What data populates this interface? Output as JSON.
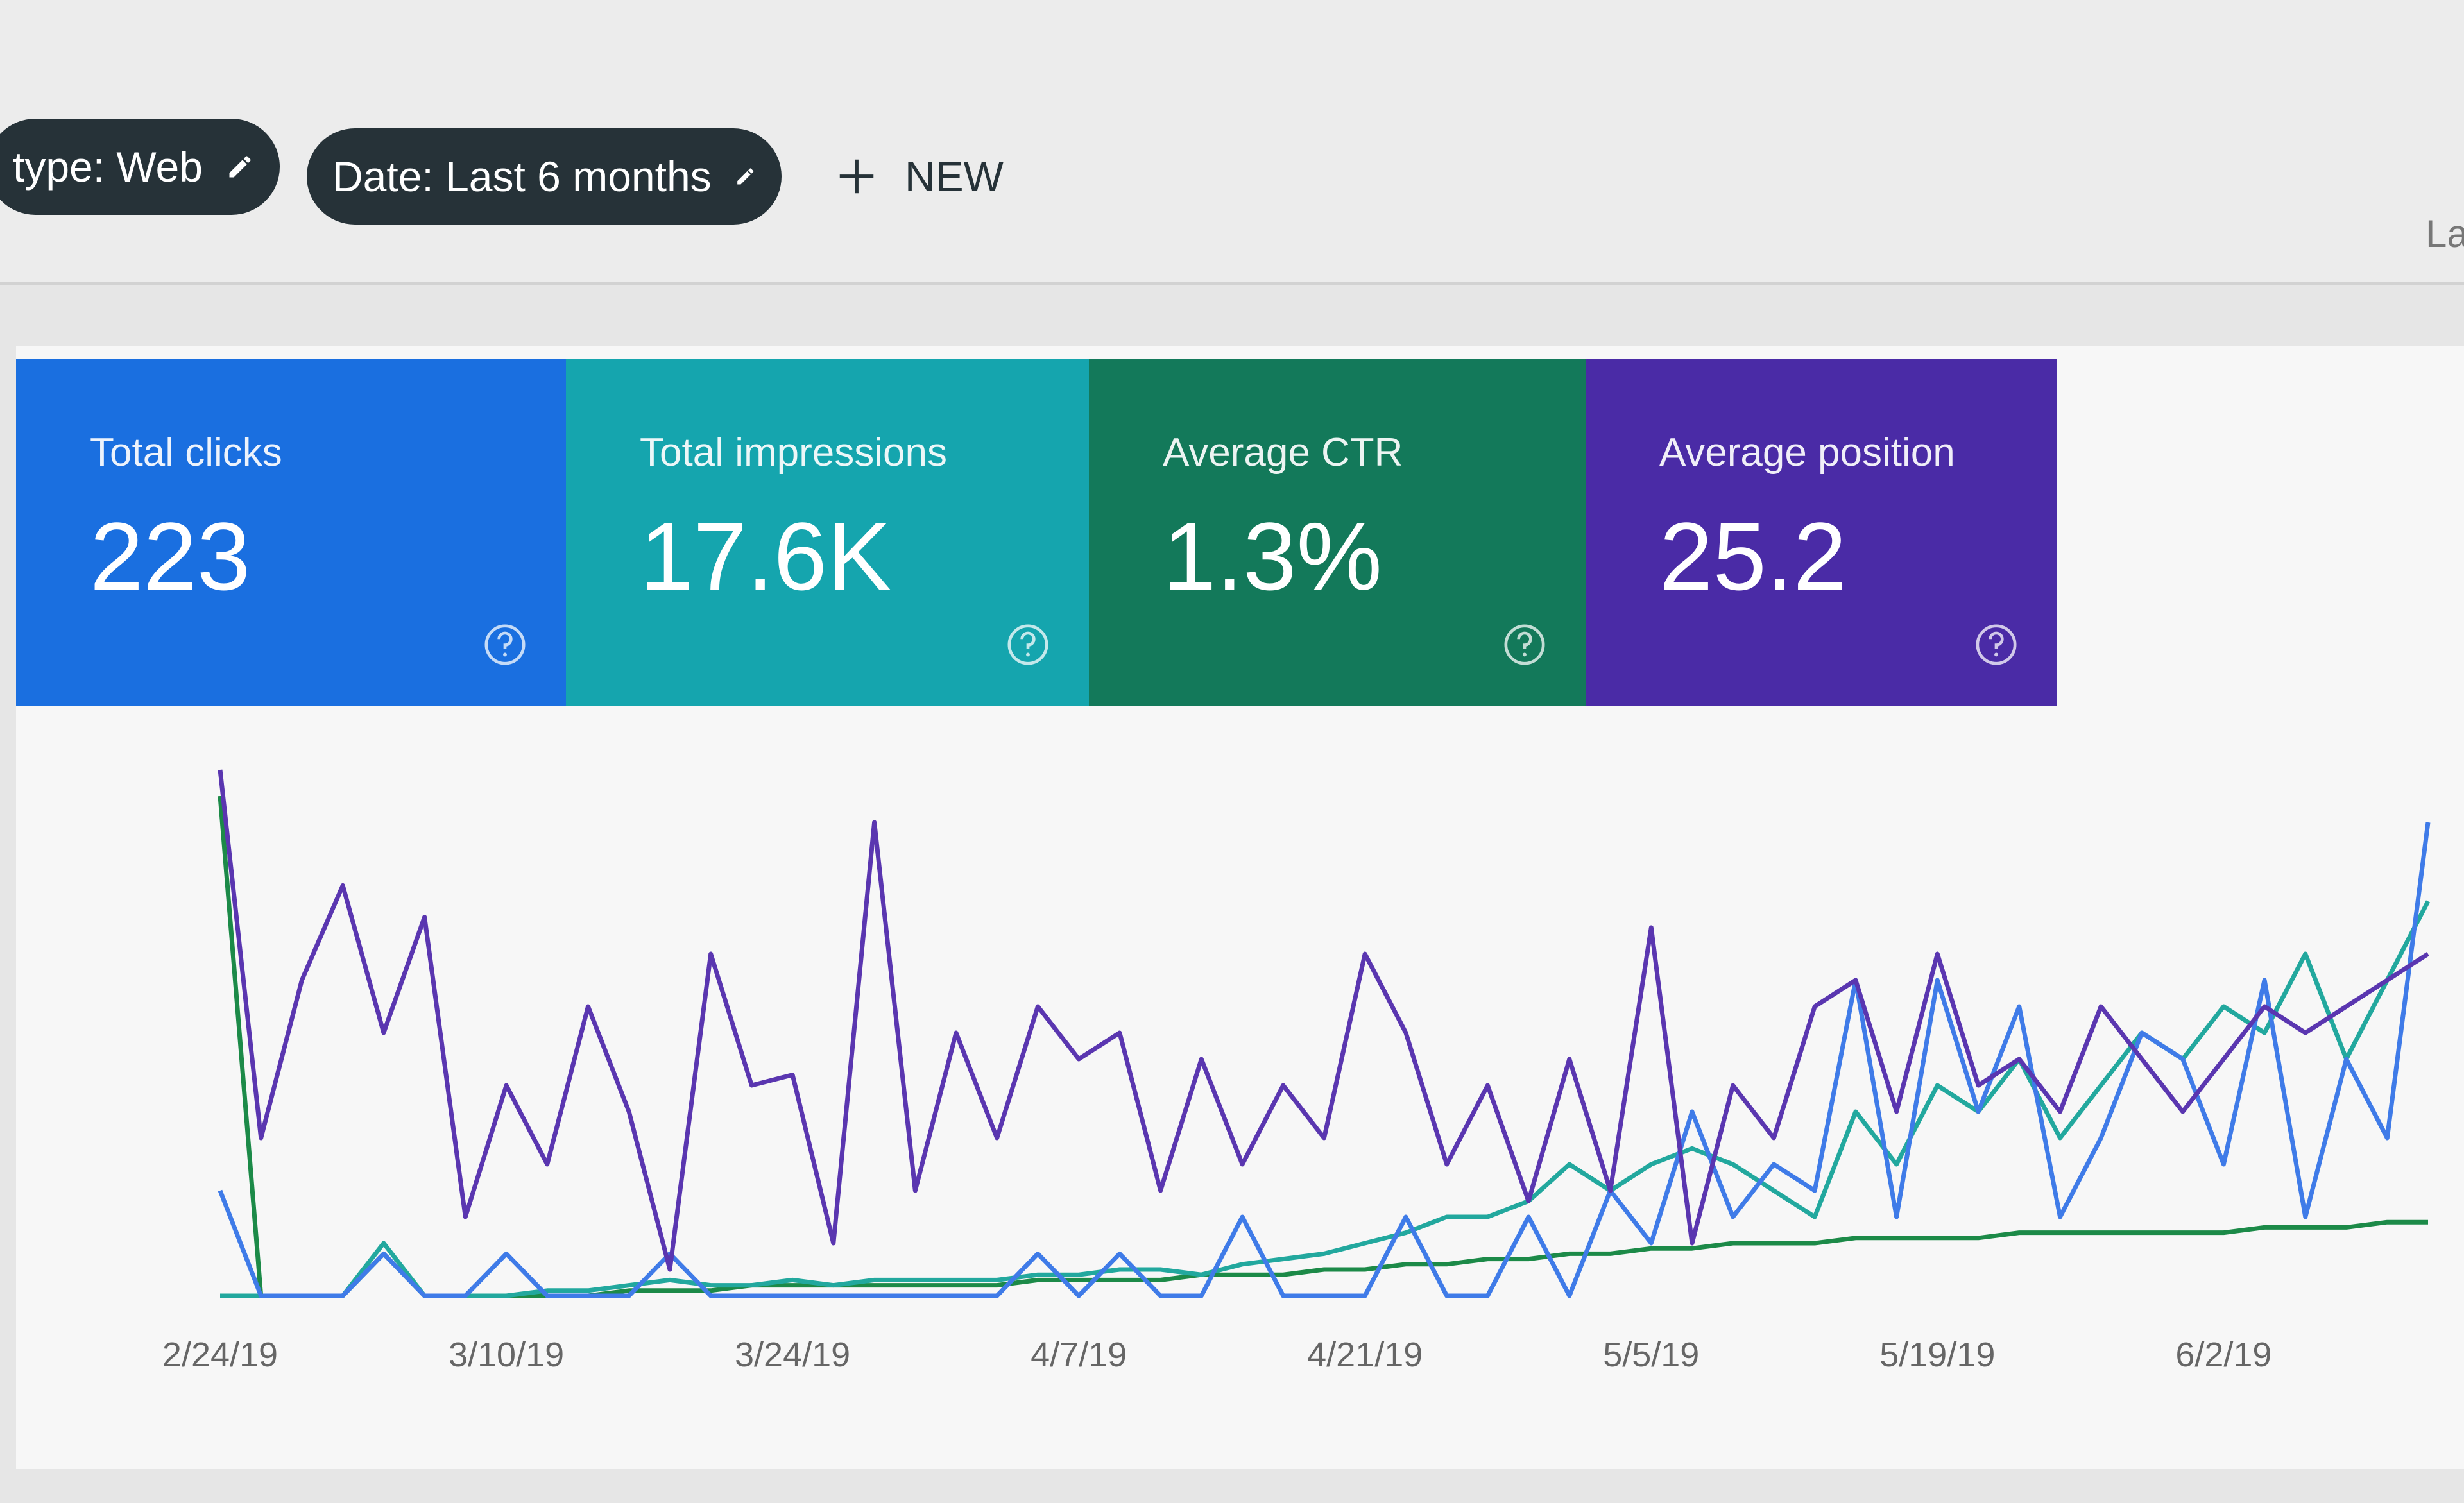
{
  "header": {
    "filters": [
      {
        "label": "type: Web"
      },
      {
        "label": "Date: Last 6 months"
      }
    ],
    "new_button": "NEW",
    "cut_label": "La"
  },
  "metrics": [
    {
      "title": "Total clicks",
      "value": "223",
      "color": "#1a6fe0"
    },
    {
      "title": "Total impressions",
      "value": "17.6K",
      "color": "#15a5ae"
    },
    {
      "title": "Average CTR",
      "value": "1.3%",
      "color": "#13795a"
    },
    {
      "title": "Average position",
      "value": "25.2",
      "color": "#4a2ba6"
    }
  ],
  "chart_data": {
    "type": "line",
    "categories": [
      "2/24/19",
      null,
      null,
      null,
      null,
      null,
      null,
      "3/10/19",
      null,
      null,
      null,
      null,
      null,
      null,
      "3/24/19",
      null,
      null,
      null,
      null,
      null,
      null,
      "4/7/19",
      null,
      null,
      null,
      null,
      null,
      null,
      "4/21/19",
      null,
      null,
      null,
      null,
      null,
      null,
      "5/5/19",
      null,
      null,
      null,
      null,
      null,
      null,
      "5/19/19",
      null,
      null,
      null,
      null,
      null,
      null,
      "6/2/19",
      null,
      null,
      null,
      null,
      null
    ],
    "ylim": [
      0,
      100
    ],
    "series": [
      {
        "color": "#5a36b0",
        "values": [
          100,
          30,
          60,
          78,
          50,
          72,
          15,
          40,
          25,
          55,
          35,
          5,
          65,
          40,
          42,
          10,
          90,
          20,
          50,
          30,
          55,
          45,
          50,
          20,
          45,
          25,
          40,
          30,
          65,
          50,
          25,
          40,
          18,
          45,
          20,
          70,
          10,
          40,
          30,
          55,
          60,
          35,
          65,
          40,
          45,
          35,
          55,
          45,
          35,
          45,
          55,
          50,
          55,
          60,
          65
        ]
      },
      {
        "color": "#3f7be8",
        "values": [
          20,
          0,
          0,
          0,
          8,
          0,
          0,
          8,
          0,
          0,
          0,
          8,
          0,
          0,
          0,
          0,
          0,
          0,
          0,
          0,
          8,
          0,
          8,
          0,
          0,
          15,
          0,
          0,
          0,
          15,
          0,
          0,
          15,
          0,
          20,
          10,
          35,
          15,
          25,
          20,
          60,
          15,
          60,
          35,
          55,
          15,
          30,
          50,
          45,
          25,
          60,
          15,
          45,
          30,
          90
        ]
      },
      {
        "color": "#22a89e",
        "values": [
          0,
          0,
          0,
          0,
          10,
          0,
          0,
          0,
          1,
          1,
          2,
          3,
          2,
          2,
          3,
          2,
          3,
          3,
          3,
          3,
          4,
          4,
          5,
          5,
          4,
          6,
          7,
          8,
          10,
          12,
          15,
          15,
          18,
          25,
          20,
          25,
          28,
          25,
          20,
          15,
          35,
          25,
          40,
          35,
          45,
          30,
          40,
          50,
          45,
          55,
          50,
          65,
          45,
          60,
          75
        ]
      },
      {
        "color": "#1c8a48",
        "values": [
          95,
          0,
          0,
          0,
          8,
          0,
          0,
          0,
          0,
          0,
          1,
          1,
          1,
          2,
          2,
          2,
          2,
          2,
          2,
          2,
          3,
          3,
          3,
          3,
          4,
          4,
          4,
          5,
          5,
          6,
          6,
          7,
          7,
          8,
          8,
          9,
          9,
          10,
          10,
          10,
          11,
          11,
          11,
          11,
          12,
          12,
          12,
          12,
          12,
          12,
          13,
          13,
          13,
          14,
          14
        ]
      }
    ]
  }
}
